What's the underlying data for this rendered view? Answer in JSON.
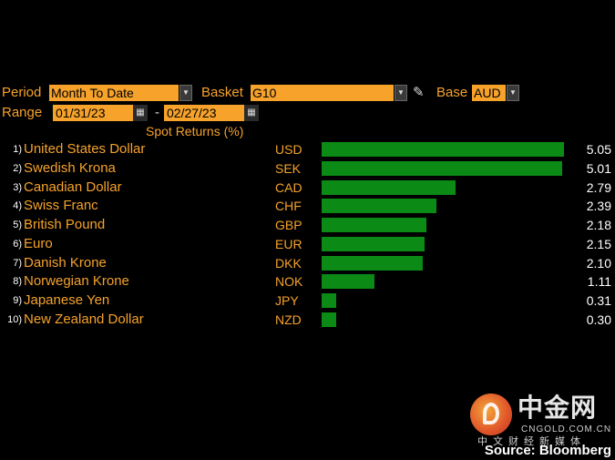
{
  "controls": {
    "period_label": "Period",
    "period_value": "Month To Date",
    "basket_label": "Basket",
    "basket_value": "G10",
    "base_label": "Base",
    "base_value": "AUD",
    "range_label": "Range",
    "range_start": "01/31/23",
    "range_separator": "-",
    "range_end": "02/27/23",
    "dropdown_glyph": "▼",
    "calendar_glyph": "▦",
    "pencil_glyph": "✎"
  },
  "column_title": "Spot Returns (%)",
  "rows": [
    {
      "rank": "1)",
      "name": "United States Dollar",
      "code": "USD",
      "value": "5.05"
    },
    {
      "rank": "2)",
      "name": "Swedish Krona",
      "code": "SEK",
      "value": "5.01"
    },
    {
      "rank": "3)",
      "name": "Canadian Dollar",
      "code": "CAD",
      "value": "2.79"
    },
    {
      "rank": "4)",
      "name": "Swiss Franc",
      "code": "CHF",
      "value": "2.39"
    },
    {
      "rank": "5)",
      "name": "British Pound",
      "code": "GBP",
      "value": "2.18"
    },
    {
      "rank": "6)",
      "name": "Euro",
      "code": "EUR",
      "value": "2.15"
    },
    {
      "rank": "7)",
      "name": "Danish Krone",
      "code": "DKK",
      "value": "2.10"
    },
    {
      "rank": "8)",
      "name": "Norwegian Krone",
      "code": "NOK",
      "value": "1.11"
    },
    {
      "rank": "9)",
      "name": "Japanese Yen",
      "code": "JPY",
      "value": "0.31"
    },
    {
      "rank": "10)",
      "name": "New Zealand Dollar",
      "code": "NZD",
      "value": "0.30"
    }
  ],
  "colors": {
    "accent": "#f6a22b",
    "bar": "#0b8a16",
    "background": "#000000"
  },
  "watermark": {
    "name_cn": "中金网",
    "url": "CNGOLD.COM.CN",
    "tagline_cn": "中文财经新媒体"
  },
  "source": "Source: Bloomberg"
}
